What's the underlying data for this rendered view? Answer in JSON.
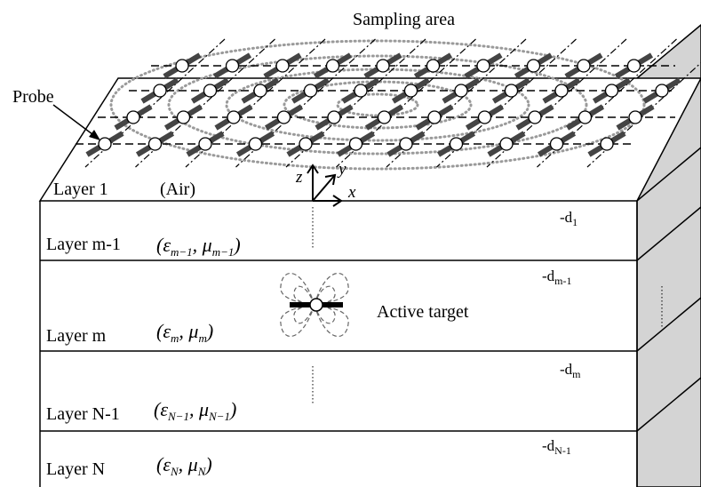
{
  "title": "Sampling area",
  "probe_label": "Probe",
  "target_label": "Active target",
  "axes": {
    "z": "z",
    "y": "y",
    "x": "x"
  },
  "layers": [
    {
      "name": "Layer 1",
      "extra": "(Air)"
    },
    {
      "name": "Layer m-1",
      "eps_sub": "m−1",
      "mu_sub": "m−1"
    },
    {
      "name": "Layer m",
      "eps_sub": "m",
      "mu_sub": "m"
    },
    {
      "name": "Layer N-1",
      "eps_sub": "N−1",
      "mu_sub": "N−1"
    },
    {
      "name": "Layer N",
      "eps_sub": "N",
      "mu_sub": "N"
    }
  ],
  "depths": [
    {
      "base": "-d",
      "sub": "1"
    },
    {
      "base": "-d",
      "sub": "m-1"
    },
    {
      "base": "-d",
      "sub": "m"
    },
    {
      "base": "-d",
      "sub": "N-1"
    }
  ],
  "symbols": {
    "eps": "ε",
    "mu": "μ"
  },
  "colors": {
    "side_face": "#d4d4d4",
    "dotted_circles": "#9a9a9a",
    "probe_fill": "#ffffff",
    "stroke": "#000000"
  }
}
